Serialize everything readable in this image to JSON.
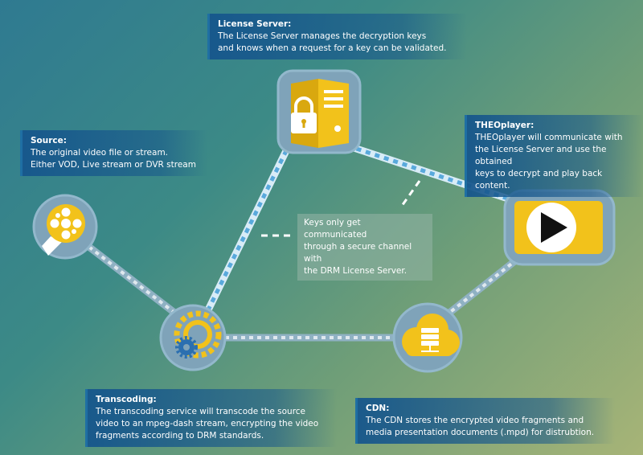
{
  "license_server": {
    "title": "License Server:",
    "body": "The License Server manages the decryption keys\nand knows when a request for a key can be validated."
  },
  "source": {
    "title": "Source:",
    "body": "The original video file or stream.\nEither VOD, Live stream or DVR stream"
  },
  "theoplayer": {
    "title": "THEOplayer:",
    "body": "THEOplayer will communicate with\nthe License Server and use the obtained\nkeys to decrypt and play back content."
  },
  "keys_note": "Keys only get communicated\nthrough a secure channel with\nthe DRM License Server.",
  "transcoding": {
    "title": "Transcoding:",
    "body": "The transcoding service will transcode the source\nvideo to an mpeg-dash stream, encrypting the video\nfragments according to DRM standards."
  },
  "cdn": {
    "title": "CDN:",
    "body": "The CDN stores the encrypted video fragments and\nmedia presentation documents (.mpd) for distrubtion."
  },
  "nodes": {
    "license_server": {
      "icon": "server-lock-icon"
    },
    "source": {
      "icon": "film-reel-icon"
    },
    "transcoding": {
      "icon": "gears-icon"
    },
    "cdn": {
      "icon": "cloud-server-icon"
    },
    "theoplayer": {
      "icon": "play-icon"
    }
  },
  "colors": {
    "node": "#7fa3b9",
    "node_border": "#93b8cc",
    "yellow": "#f2c21b",
    "secure_link": "#d8ecf7",
    "secure_link_dash": "#59a9dc",
    "plain_link": "#8fb1c3",
    "plain_link_dash": "#dfe8ee"
  }
}
